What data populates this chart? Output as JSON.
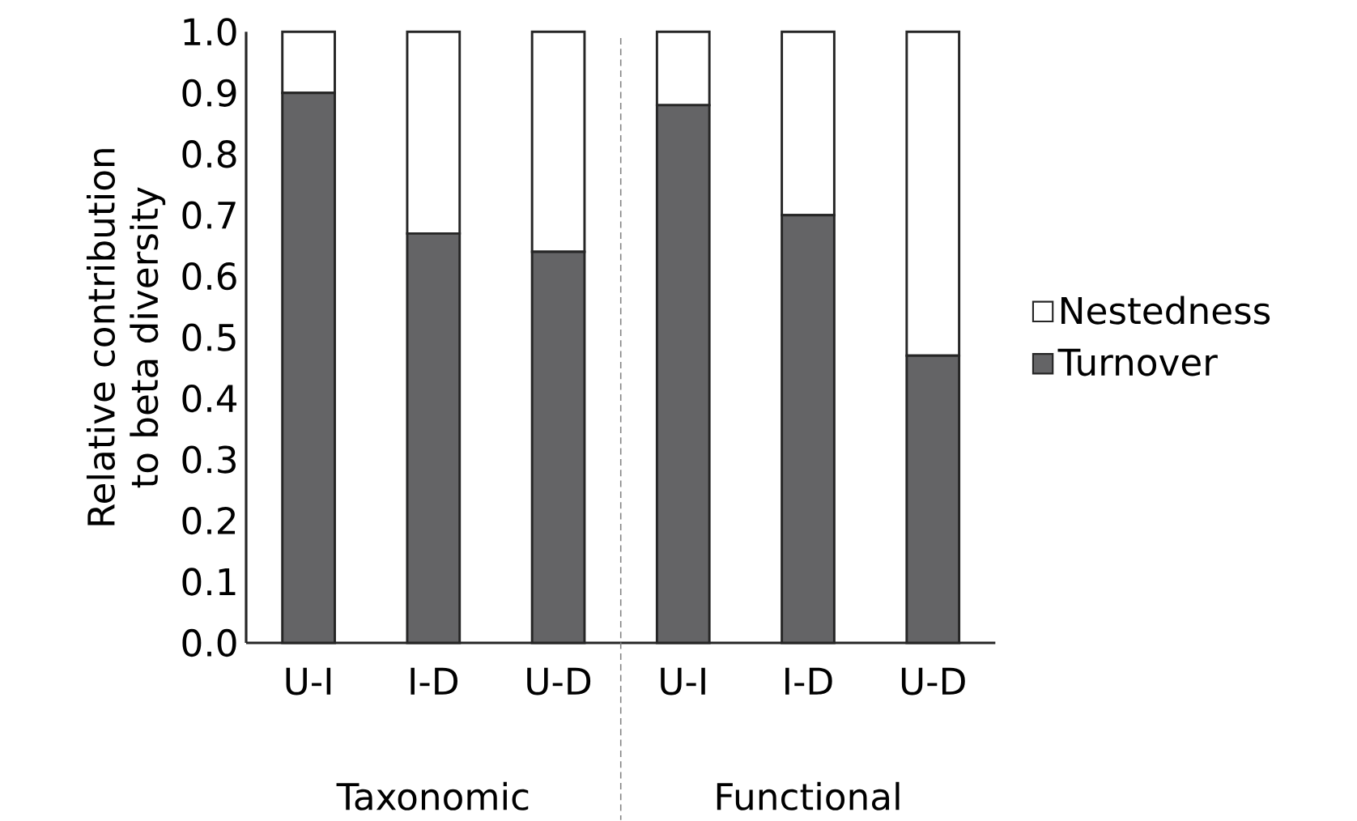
{
  "chart_data": {
    "type": "bar",
    "stacked": true,
    "ylabel": "Relative contribution to beta diversity",
    "categories": [
      "U-I",
      "I-D",
      "U-D",
      "U-I",
      "I-D",
      "U-D"
    ],
    "series": [
      {
        "name": "Turnover",
        "color": "#646466",
        "values": [
          0.9,
          0.67,
          0.64,
          0.88,
          0.7,
          0.47
        ]
      },
      {
        "name": "Nestedness",
        "color": "#ffffff",
        "values": [
          0.1,
          0.33,
          0.36,
          0.12,
          0.3,
          0.53
        ]
      }
    ],
    "ylim": [
      0,
      1
    ],
    "yticks": [
      {
        "value": 0,
        "label": "0.0"
      },
      {
        "value": 0.1,
        "label": "0.1"
      },
      {
        "value": 0.2,
        "label": "0.2"
      },
      {
        "value": 0.3,
        "label": "0.3"
      },
      {
        "value": 0.4,
        "label": "0.4"
      },
      {
        "value": 0.5,
        "label": "0.5"
      },
      {
        "value": 0.6,
        "label": "0.6"
      },
      {
        "value": 0.7,
        "label": "0.7"
      },
      {
        "value": 0.8,
        "label": "0.8"
      },
      {
        "value": 0.9,
        "label": "0.9"
      },
      {
        "value": 1.0,
        "label": "1.0"
      }
    ],
    "annotations": [
      "Taxonomic",
      "Functional"
    ],
    "legend": "right",
    "grid": false
  }
}
